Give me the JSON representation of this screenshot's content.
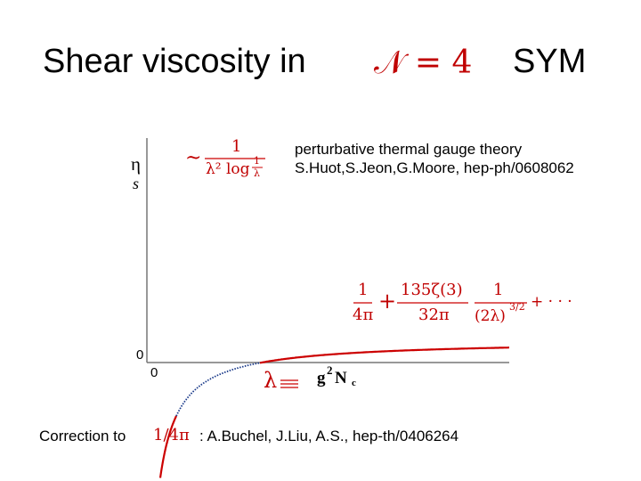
{
  "slide": {
    "title_left": "Shear viscosity in",
    "title_math": "𝒩 = 4",
    "title_right": "SYM",
    "ref_top_line1": "perturbative thermal gauge theory",
    "ref_top_line2": "S.Huot,S.Jeon,G.Moore, hep-ph/0608062",
    "bottom_left": "Correction to",
    "bottom_math": "1/4π",
    "bottom_right": ": A.Buchel, J.Liu, A.S., hep-th/0406264"
  },
  "plot": {
    "y_label_num": "η",
    "y_label_den": "s",
    "y_origin": "0",
    "x_origin": "0",
    "x_label_lambda": "λ ≡",
    "x_label_g": "g",
    "x_label_exp": "2",
    "x_label_N": "N",
    "x_label_sub": "c",
    "weak_sim": "~",
    "weak_num": "1",
    "weak_den_a": "λ² log",
    "weak_frac_num": "1",
    "weak_frac_den": "λ",
    "strong_t1_num": "1",
    "strong_t1_den": "4π",
    "strong_plus1": "+",
    "strong_t2_num": "135ζ(3)",
    "strong_t2_den": "32π",
    "strong_t3_num": "1",
    "strong_t3_den": "(2λ)",
    "strong_t3_exp": "3/2",
    "strong_tail": "+ · · ·"
  },
  "colors": {
    "curve": "#cc0000",
    "curve_mid": "#1a3a8a",
    "axis": "#777777"
  }
}
